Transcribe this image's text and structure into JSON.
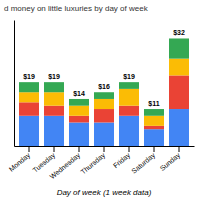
{
  "chart_data": {
    "type": "bar",
    "title": "d money on little luxuries by day of week",
    "xlabel": "Day of week (1 week data)",
    "categories": [
      "Monday",
      "Tuesday",
      "Wednesday",
      "Thursday",
      "Friday",
      "Saturday",
      "Sunday"
    ],
    "series": [
      {
        "color": "#4285F4",
        "values": [
          9,
          9,
          7,
          7,
          9,
          5,
          11
        ]
      },
      {
        "color": "#EA4335",
        "values": [
          4,
          3,
          2,
          4,
          3,
          1,
          10
        ]
      },
      {
        "color": "#FBBC05",
        "values": [
          3,
          4,
          3,
          3,
          5,
          3,
          5
        ]
      },
      {
        "color": "#34A853",
        "values": [
          3,
          3,
          2,
          2,
          2,
          2,
          6
        ]
      }
    ],
    "stacked": true,
    "totals": [
      19,
      19,
      14,
      16,
      19,
      11,
      32
    ],
    "total_labels": [
      "$19",
      "$19",
      "$14",
      "$16",
      "$19",
      "$11",
      "$32"
    ],
    "ylim": [
      0,
      37.5
    ],
    "yticks": [],
    "tick_labels": "x"
  }
}
